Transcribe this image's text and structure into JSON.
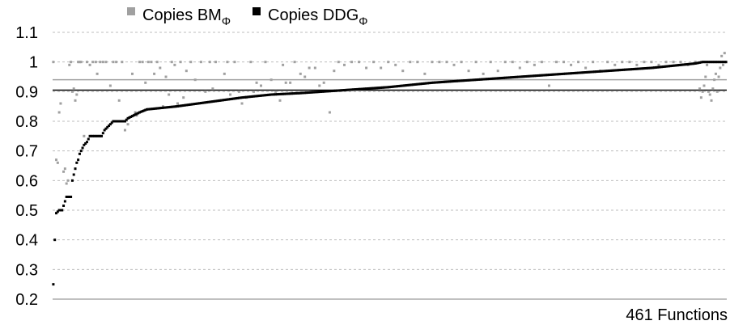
{
  "chart_data": {
    "type": "scatter",
    "xlabel": "461 Functions",
    "ylim": [
      0.2,
      1.1
    ],
    "yticks": [
      "0.2",
      "0.3",
      "0.4",
      "0.5",
      "0.6",
      "0.7",
      "0.8",
      "0.9",
      "1",
      "1.1"
    ],
    "grid": "horizontal-dashed",
    "legend_position": "top",
    "n_points": 461,
    "series": [
      {
        "name": "Copies BM",
        "name_subscript": "Φ",
        "color": "#a0a0a0",
        "mean": 0.94,
        "points": [
          [
            1,
            1.0
          ],
          [
            3,
            0.67
          ],
          [
            4,
            0.66
          ],
          [
            5,
            0.83
          ],
          [
            6,
            0.86
          ],
          [
            8,
            0.63
          ],
          [
            9,
            0.64
          ],
          [
            10,
            0.59
          ],
          [
            11,
            0.6
          ],
          [
            12,
            0.99
          ],
          [
            13,
            1.0
          ],
          [
            14,
            0.9
          ],
          [
            15,
            0.91
          ],
          [
            16,
            0.87
          ],
          [
            17,
            0.89
          ],
          [
            18,
            1.0
          ],
          [
            19,
            1.0
          ],
          [
            20,
            1.0
          ],
          [
            22,
            0.75
          ],
          [
            24,
            1.0
          ],
          [
            26,
            0.99
          ],
          [
            28,
            1.0
          ],
          [
            30,
            1.0
          ],
          [
            31,
            0.96
          ],
          [
            33,
            1.0
          ],
          [
            35,
            1.0
          ],
          [
            37,
            1.0
          ],
          [
            40,
            0.92
          ],
          [
            42,
            1.0
          ],
          [
            44,
            1.0
          ],
          [
            46,
            0.87
          ],
          [
            48,
            1.0
          ],
          [
            50,
            0.77
          ],
          [
            52,
            0.79
          ],
          [
            55,
            0.96
          ],
          [
            57,
            0.83
          ],
          [
            58,
            0.82
          ],
          [
            60,
            1.0
          ],
          [
            62,
            1.0
          ],
          [
            64,
            0.93
          ],
          [
            66,
            1.0
          ],
          [
            68,
            1.0
          ],
          [
            70,
            0.96
          ],
          [
            72,
            1.0
          ],
          [
            74,
            0.98
          ],
          [
            76,
            0.85
          ],
          [
            78,
            0.95
          ],
          [
            80,
            0.89
          ],
          [
            82,
            1.0
          ],
          [
            84,
            0.99
          ],
          [
            86,
            0.86
          ],
          [
            88,
            1.0
          ],
          [
            90,
            0.88
          ],
          [
            92,
            0.97
          ],
          [
            95,
            1.0
          ],
          [
            98,
            0.94
          ],
          [
            100,
            0.86
          ],
          [
            102,
            1.0
          ],
          [
            105,
            0.9
          ],
          [
            108,
            1.0
          ],
          [
            110,
            0.91
          ],
          [
            112,
            1.0
          ],
          [
            115,
            0.87
          ],
          [
            118,
            0.96
          ],
          [
            120,
            1.0
          ],
          [
            122,
            0.89
          ],
          [
            125,
            1.0
          ],
          [
            128,
            0.9
          ],
          [
            130,
            0.86
          ],
          [
            133,
            0.88
          ],
          [
            136,
            1.0
          ],
          [
            138,
            0.9
          ],
          [
            140,
            0.93
          ],
          [
            143,
            0.92
          ],
          [
            146,
            1.0
          ],
          [
            150,
            0.94
          ],
          [
            153,
            0.9
          ],
          [
            156,
            0.87
          ],
          [
            158,
            0.99
          ],
          [
            160,
            0.93
          ],
          [
            163,
            0.93
          ],
          [
            166,
            1.0
          ],
          [
            170,
            0.96
          ],
          [
            173,
            0.95
          ],
          [
            176,
            0.98
          ],
          [
            180,
            0.98
          ],
          [
            183,
            0.92
          ],
          [
            186,
            0.93
          ],
          [
            190,
            0.83
          ],
          [
            193,
            0.97
          ],
          [
            196,
            1.0
          ],
          [
            200,
            0.99
          ],
          [
            205,
            1.0
          ],
          [
            210,
            1.0
          ],
          [
            215,
            0.98
          ],
          [
            220,
            1.0
          ],
          [
            225,
            0.98
          ],
          [
            230,
            1.0
          ],
          [
            235,
            0.99
          ],
          [
            240,
            0.97
          ],
          [
            245,
            1.0
          ],
          [
            250,
            1.0
          ],
          [
            255,
            0.96
          ],
          [
            260,
            1.0
          ],
          [
            265,
            1.0
          ],
          [
            270,
            1.0
          ],
          [
            275,
            0.99
          ],
          [
            280,
            1.0
          ],
          [
            285,
            0.97
          ],
          [
            290,
            1.0
          ],
          [
            295,
            0.96
          ],
          [
            300,
            1.0
          ],
          [
            305,
            0.97
          ],
          [
            310,
            1.0
          ],
          [
            315,
            1.0
          ],
          [
            320,
            0.98
          ],
          [
            325,
            1.0
          ],
          [
            330,
            0.99
          ],
          [
            335,
            1.0
          ],
          [
            340,
            0.92
          ],
          [
            345,
            1.0
          ],
          [
            350,
            1.0
          ],
          [
            355,
            0.99
          ],
          [
            360,
            1.0
          ],
          [
            365,
            0.98
          ],
          [
            370,
            1.0
          ],
          [
            375,
            0.97
          ],
          [
            380,
            1.0
          ],
          [
            385,
            0.99
          ],
          [
            390,
            1.0
          ],
          [
            395,
            1.0
          ],
          [
            400,
            0.99
          ],
          [
            405,
            1.0
          ],
          [
            410,
            1.0
          ],
          [
            415,
            0.99
          ],
          [
            420,
            1.0
          ],
          [
            425,
            1.0
          ],
          [
            430,
            1.0
          ],
          [
            435,
            0.99
          ],
          [
            440,
            1.0
          ],
          [
            443,
            0.91
          ],
          [
            444,
            0.88
          ],
          [
            445,
            0.9
          ],
          [
            446,
            0.92
          ],
          [
            447,
            0.95
          ],
          [
            448,
            0.99
          ],
          [
            449,
            0.9
          ],
          [
            450,
            0.89
          ],
          [
            451,
            0.87
          ],
          [
            452,
            0.91
          ],
          [
            453,
            0.94
          ],
          [
            454,
            0.96
          ],
          [
            455,
            0.9
          ],
          [
            456,
            0.95
          ],
          [
            457,
            0.98
          ],
          [
            458,
            1.02
          ],
          [
            459,
            0.99
          ],
          [
            460,
            1.03
          ],
          [
            461,
            1.0
          ]
        ]
      },
      {
        "name": "Copies DDG",
        "name_subscript": "Φ",
        "color": "#000000",
        "mean": 0.905,
        "curve_anchors": [
          [
            1,
            0.25
          ],
          [
            2,
            0.4
          ],
          [
            3,
            0.49
          ],
          [
            5,
            0.5
          ],
          [
            7,
            0.5
          ],
          [
            9,
            0.53
          ],
          [
            10,
            0.545
          ],
          [
            13,
            0.545
          ],
          [
            14,
            0.6
          ],
          [
            15,
            0.62
          ],
          [
            16,
            0.64
          ],
          [
            17,
            0.66
          ],
          [
            18,
            0.67
          ],
          [
            19,
            0.69
          ],
          [
            20,
            0.7
          ],
          [
            22,
            0.72
          ],
          [
            24,
            0.73
          ],
          [
            26,
            0.75
          ],
          [
            34,
            0.75
          ],
          [
            36,
            0.77
          ],
          [
            38,
            0.78
          ],
          [
            42,
            0.8
          ],
          [
            50,
            0.8
          ],
          [
            52,
            0.81
          ],
          [
            56,
            0.82
          ],
          [
            60,
            0.83
          ],
          [
            65,
            0.84
          ],
          [
            75,
            0.845
          ],
          [
            85,
            0.85
          ],
          [
            100,
            0.86
          ],
          [
            115,
            0.87
          ],
          [
            130,
            0.88
          ],
          [
            150,
            0.89
          ],
          [
            170,
            0.895
          ],
          [
            200,
            0.905
          ],
          [
            230,
            0.915
          ],
          [
            260,
            0.93
          ],
          [
            290,
            0.94
          ],
          [
            320,
            0.95
          ],
          [
            350,
            0.96
          ],
          [
            380,
            0.97
          ],
          [
            410,
            0.98
          ],
          [
            430,
            0.99
          ],
          [
            440,
            0.995
          ],
          [
            445,
            1.0
          ],
          [
            461,
            1.0
          ]
        ]
      }
    ]
  }
}
